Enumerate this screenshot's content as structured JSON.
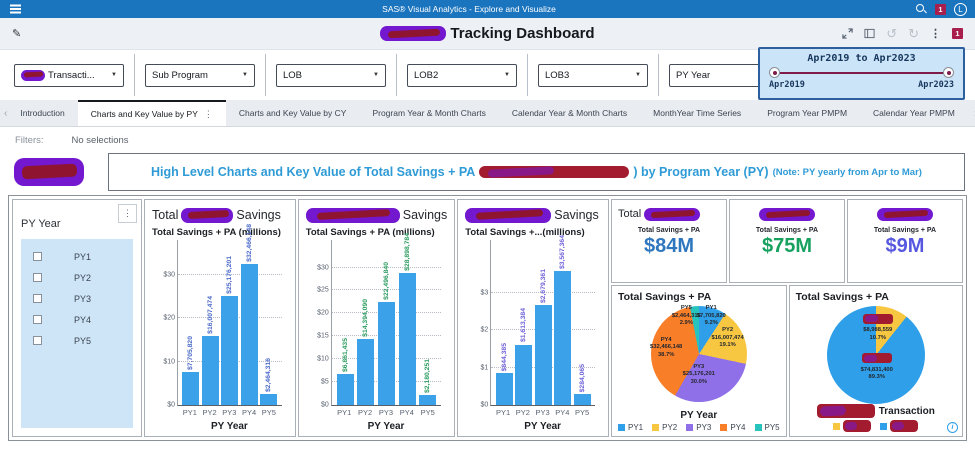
{
  "app_bar": {
    "title": "SAS® Visual Analytics - Explore and Visualize",
    "badge": "1",
    "avatar": "L"
  },
  "toolbar": {
    "title_suffix": "Tracking Dashboard",
    "title_prefix_redacted": true,
    "badge": "1"
  },
  "filters_row": {
    "dropdowns": [
      {
        "label": "Transacti...",
        "redacted_prefix": true
      },
      {
        "label": "Sub Program",
        "redacted_prefix": false
      },
      {
        "label": "LOB",
        "redacted_prefix": false
      },
      {
        "label": "LOB2",
        "redacted_prefix": false
      },
      {
        "label": "LOB3",
        "redacted_prefix": false
      },
      {
        "label": "PY Year",
        "redacted_prefix": false
      }
    ],
    "date_slider": {
      "title": "Apr2019 to Apr2023",
      "start_label": "Apr2019",
      "end_label": "Apr2023",
      "track_color": "#7E1B4A",
      "box_fill": "#CBE4F7",
      "box_border": "#2D5F9E"
    }
  },
  "tabs": {
    "items": [
      {
        "label": "Introduction",
        "active": false
      },
      {
        "label": "Charts and Key Value by PY",
        "active": true
      },
      {
        "label": "Charts and Key Value by CY",
        "active": false
      },
      {
        "label": "Program Year & Month Charts",
        "active": false
      },
      {
        "label": "Calendar Year & Month Charts",
        "active": false
      },
      {
        "label": "MonthYear Time Series",
        "active": false
      },
      {
        "label": "Program Year PMPM",
        "active": false
      },
      {
        "label": "Calendar Year PMPM",
        "active": false
      }
    ]
  },
  "filters_bar": {
    "label": "Filters:",
    "value": "No selections"
  },
  "heading": {
    "text_part1": "High Level Charts and Key Value of Total Savings + PA",
    "redacted_middle": true,
    "text_part2": ") by Program Year (PY)",
    "note": "(Note: PY yearly from Apr to Mar)",
    "color": "#2F9BD6"
  },
  "py_panel": {
    "title": "PY Year",
    "options": [
      "PY1",
      "PY2",
      "PY3",
      "PY4",
      "PY5"
    ]
  },
  "kpis": [
    {
      "title_prefix": "Total",
      "title_redacted": true,
      "label": "Total Savings + PA",
      "value": "$84M",
      "color": "#2E77BE"
    },
    {
      "title_prefix": "",
      "title_redacted": true,
      "label": "Total Savings + PA",
      "value": "$75M",
      "color": "#17A15F"
    },
    {
      "title_prefix": "",
      "title_redacted": true,
      "label": "Total Savings + PA",
      "value": "$9M",
      "color": "#5757E0"
    }
  ],
  "chart_data": [
    {
      "type": "bar",
      "title_prefix": "Total",
      "title_redacted": true,
      "title_suffix": "Savings",
      "subtitle": "Total Savings + PA (millions)",
      "categories": [
        "PY1",
        "PY2",
        "PY3",
        "PY4",
        "PY5"
      ],
      "values": [
        7705820,
        16007474,
        25176201,
        32466148,
        2464316
      ],
      "value_labels": [
        "$7,705,820",
        "$16,007,474",
        "$25,176,201",
        "$32,466,148",
        "$2,464,316"
      ],
      "ytick_labels": [
        "$0",
        "$10",
        "$20",
        "$30"
      ],
      "ytick_values": [
        0,
        10,
        20,
        30
      ],
      "ymax_millions": 38,
      "xlabel": "PY Year",
      "bar_color": "#3BA2EA",
      "label_color": "#4A68C8",
      "grid": true
    },
    {
      "type": "bar",
      "title_prefix": "",
      "title_redacted": true,
      "title_suffix": "Savings",
      "subtitle": "Total Savings + PA (millions)",
      "categories": [
        "PY1",
        "PY2",
        "PY3",
        "PY4",
        "PY5"
      ],
      "values": [
        6861435,
        14394090,
        22496840,
        28898784,
        2180251
      ],
      "value_labels": [
        "$6,861,435",
        "$14,394,090",
        "$22,496,840",
        "$28,898,784",
        "$2,180,251"
      ],
      "ytick_labels": [
        "$0",
        "$5",
        "$10",
        "$15",
        "$20",
        "$25",
        "$30"
      ],
      "ytick_values": [
        0,
        5,
        10,
        15,
        20,
        25,
        30
      ],
      "ymax_millions": 36,
      "xlabel": "PY Year",
      "bar_color": "#3BA2EA",
      "label_color": "#2B9B5F",
      "grid": true
    },
    {
      "type": "bar",
      "title_prefix": "",
      "title_redacted": true,
      "title_suffix": "Savings",
      "subtitle": "Total Savings +...(millions)",
      "categories": [
        "PY1",
        "PY2",
        "PY3",
        "PY4",
        "PY5"
      ],
      "values": [
        844385,
        1613384,
        2679361,
        3567364,
        284065
      ],
      "value_labels": [
        "$844,385",
        "$1,613,384",
        "$2,679,361",
        "$3,567,364",
        "$284,065"
      ],
      "ytick_labels": [
        "$0",
        "$1",
        "$2",
        "$3"
      ],
      "ytick_values": [
        0,
        1,
        2,
        3
      ],
      "ymax_millions": 4.4,
      "xlabel": "PY Year",
      "bar_color": "#3BA2EA",
      "label_color": "#6E62D9",
      "grid": true
    },
    {
      "type": "pie",
      "title": "Total Savings + PA",
      "slices": [
        {
          "name": "PY1",
          "value_label": "$7,705,820",
          "pct": 9.2,
          "color": "#2E9FE8"
        },
        {
          "name": "PY2",
          "value_label": "$16,007,474",
          "pct": 19.1,
          "color": "#F7C742"
        },
        {
          "name": "PY3",
          "value_label": "$25,176,201",
          "pct": 30.0,
          "color": "#9070E8"
        },
        {
          "name": "PY4",
          "value_label": "$32,466,148",
          "pct": 38.7,
          "color": "#F97E28"
        },
        {
          "name": "PY5",
          "value_label": "$2,464,316",
          "pct": 2.9,
          "color": "#27C4BE"
        }
      ],
      "legend_title": "PY Year",
      "legend": [
        "PY1",
        "PY2",
        "PY3",
        "PY4",
        "PY5"
      ],
      "legend_redacted": false
    },
    {
      "type": "pie",
      "title": "Total Savings + PA",
      "slices": [
        {
          "name": "",
          "name_redacted": true,
          "value_label": "$8,988,559",
          "pct": 10.7,
          "color": "#F7C742"
        },
        {
          "name": "",
          "name_redacted": true,
          "value_label": "$74,831,400",
          "pct": 89.3,
          "color": "#2E9FE8"
        }
      ],
      "legend_title": "Transaction",
      "legend_title_redacted_prefix": true,
      "legend": [
        "",
        ""
      ],
      "legend_redacted": true,
      "info_icon": true
    }
  ]
}
